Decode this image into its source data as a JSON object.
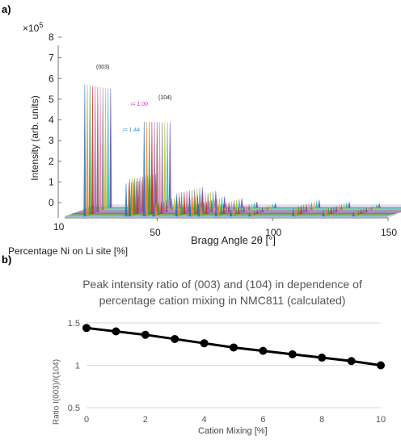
{
  "panel_a": {
    "label": "a)",
    "exponent": "×10",
    "exponent_power": "5",
    "ylabel": "Intensity (arb. units)",
    "xlabel": "Bragg Angle 2θ [°]",
    "zlabel": "Percentage Ni on Li site [%]",
    "ratio_top_label": "= 1.00",
    "ratio_bottom_label": "= 1.44",
    "ratio_top_color": "#c040c0",
    "ratio_bottom_color": "#3a8fd6"
  },
  "panel_b": {
    "label": "b)",
    "title_line1": "Peak intensity ratio of (003) and (104) in dependence of",
    "title_line2": "percentage cation mixing in NMC811 (calculated)"
  },
  "chart_data": [
    {
      "type": "line",
      "title": "",
      "xlabel": "Bragg Angle 2θ [°]",
      "ylabel": "Intensity (arb. units)",
      "zlabel": "Percentage Ni on Li site [%]",
      "xlim": [
        10,
        150
      ],
      "ylim": [
        0,
        8
      ],
      "y_scale_factor": "×10^5",
      "x_ticks": [
        "50",
        "100",
        "150"
      ],
      "y_ticks": [
        "0",
        "1",
        "2",
        "3",
        "4",
        "5",
        "6",
        "7",
        "8"
      ],
      "z_ticks": [
        "10"
      ],
      "peak_labels": [
        {
          "label": "(003)",
          "x": 18.7,
          "y": 6.6
        },
        {
          "label": "(104)",
          "x": 44.4,
          "y": 4.7
        }
      ],
      "peaks": [
        {
          "x": 18.7,
          "y": 6.4
        },
        {
          "x": 36.6,
          "y": 1.6
        },
        {
          "x": 38.1,
          "y": 1.8
        },
        {
          "x": 44.4,
          "y": 4.6
        },
        {
          "x": 48.5,
          "y": 0.6
        },
        {
          "x": 58.4,
          "y": 1.1
        },
        {
          "x": 64.2,
          "y": 0.9
        },
        {
          "x": 68.0,
          "y": 0.6
        },
        {
          "x": 75.5,
          "y": 0.5
        },
        {
          "x": 82.0,
          "y": 0.3
        },
        {
          "x": 90.0,
          "y": 0.2
        },
        {
          "x": 109.0,
          "y": 0.4
        },
        {
          "x": 122.0,
          "y": 0.3
        },
        {
          "x": 135.0,
          "y": 0.2
        }
      ]
    },
    {
      "type": "line",
      "title": "Peak intensity ratio of (003) and (104) in dependence of percentage cation mixing in NMC811 (calculated)",
      "xlabel": "Cation Mixing [%]",
      "ylabel": "Ratio I(003)/I(104)",
      "xlim": [
        0,
        10
      ],
      "ylim": [
        0.5,
        1.5
      ],
      "x_ticks": [
        "0",
        "2",
        "4",
        "6",
        "8",
        "10"
      ],
      "y_ticks": [
        "0.5",
        "1",
        "1.5"
      ],
      "grid": "horizontal",
      "series": [
        {
          "color": "#000000",
          "x": [
            0,
            1,
            2,
            3,
            4,
            5,
            6,
            7,
            8,
            9,
            10
          ],
          "y": [
            1.44,
            1.4,
            1.36,
            1.31,
            1.26,
            1.21,
            1.17,
            1.13,
            1.09,
            1.05,
            1.0
          ]
        }
      ]
    }
  ]
}
